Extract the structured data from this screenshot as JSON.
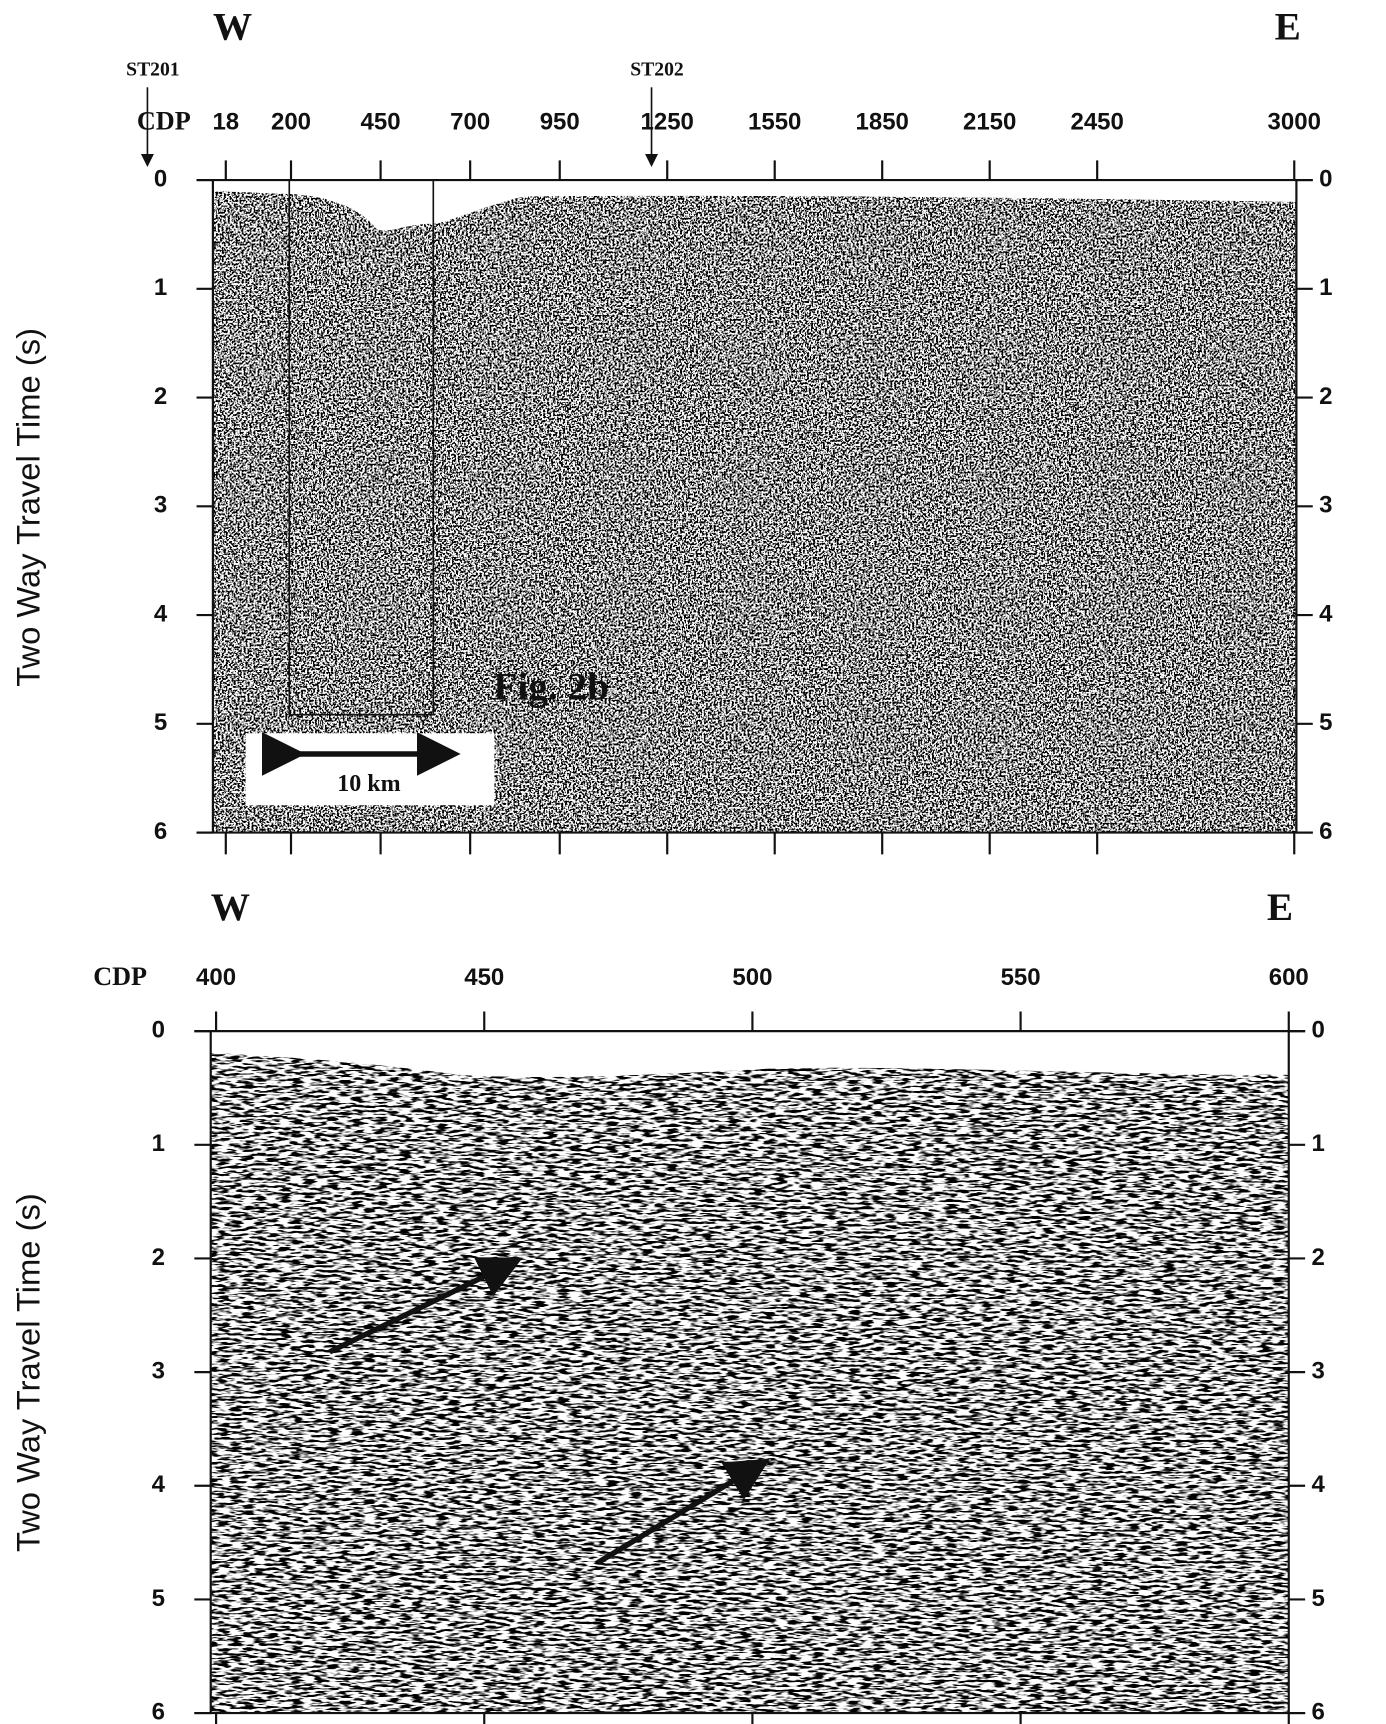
{
  "chart_data": [
    {
      "type": "seismic",
      "left_label": "W",
      "right_label": "E",
      "xlabel": "CDP",
      "ylabel": "Two Way Travel Time (s)",
      "xlim": [
        -18,
        3006
      ],
      "xticks": [
        18,
        200,
        450,
        700,
        950,
        1250,
        1550,
        1850,
        2150,
        2450,
        3000
      ],
      "ylim": [
        0,
        6
      ],
      "yticks": [
        0,
        1,
        2,
        3,
        4,
        5,
        6
      ],
      "annotations": [
        "ST201",
        "ST202",
        "Fig. 2b",
        "10 km"
      ]
    },
    {
      "type": "seismic",
      "left_label": "W",
      "right_label": "E",
      "xlabel": "CDP",
      "ylabel": "Two Way Travel Time (s)",
      "xlim": [
        399,
        600
      ],
      "xticks": [
        400,
        450,
        500,
        550,
        600
      ],
      "ylim": [
        0,
        6
      ],
      "yticks": [
        0,
        1,
        2,
        3,
        4,
        5,
        6
      ]
    }
  ]
}
